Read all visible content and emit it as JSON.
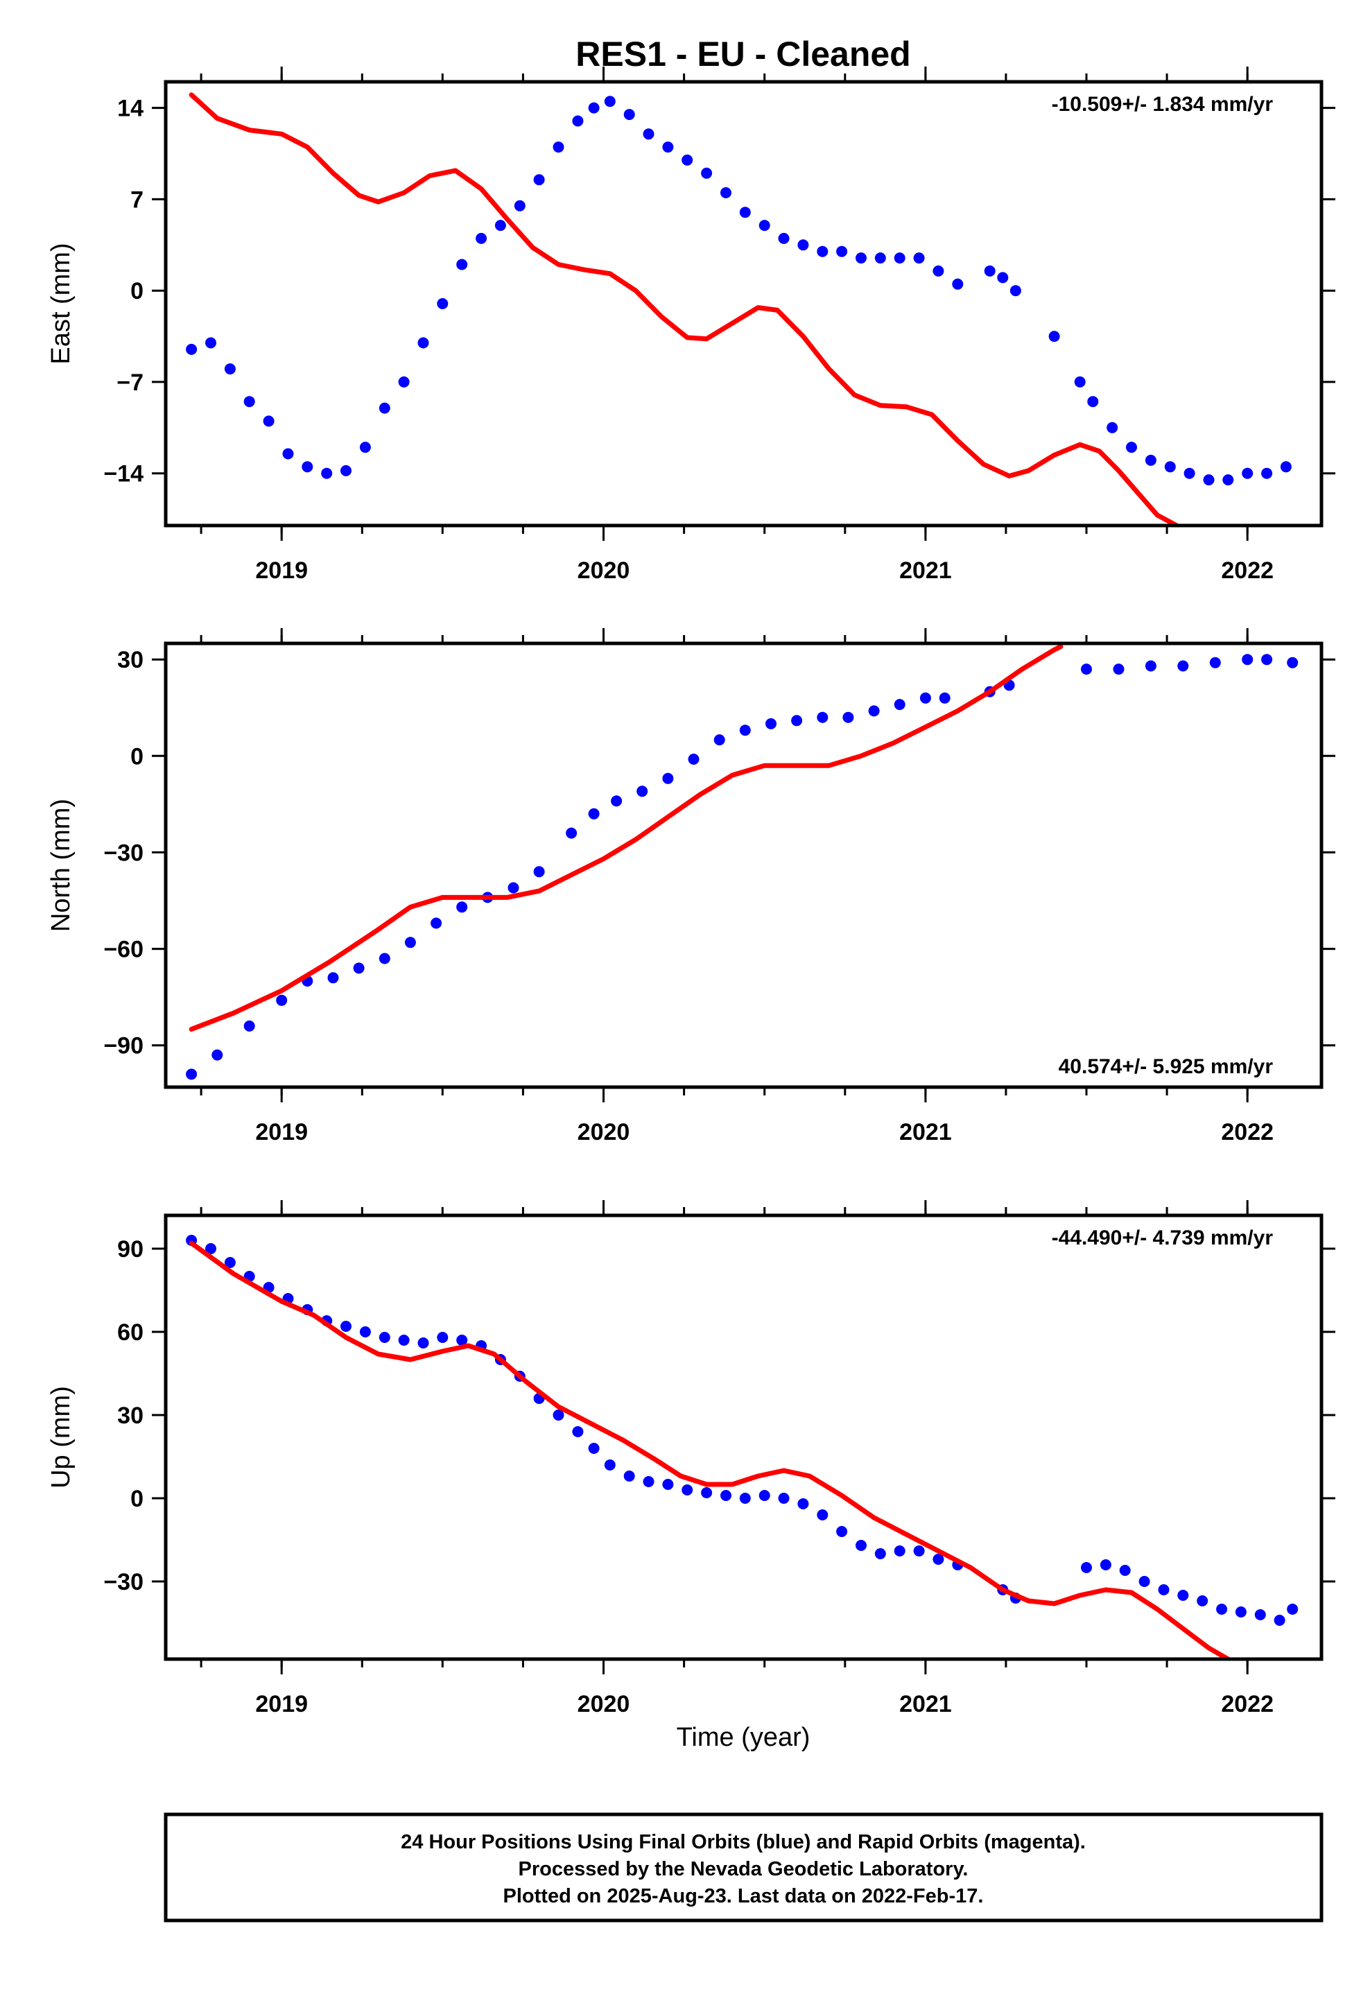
{
  "chart_data": {
    "title": "RES1  - EU - Cleaned",
    "type": "scatter",
    "colors": {
      "observations": "#0000ff",
      "model": "#ff0000",
      "frame": "#000000"
    },
    "xlabel": "Time (year)",
    "xlim": [
      2018.64,
      2022.23
    ],
    "x_ticks": [
      2019,
      2020,
      2021,
      2022
    ],
    "x_tick_labels": [
      "2019",
      "2020",
      "2021",
      "2022"
    ],
    "x_minor_step": 0.25,
    "grid": false,
    "panels": [
      {
        "name": "east",
        "ylabel": "East (mm)",
        "ylim": [
          -18,
          16
        ],
        "y_ticks": [
          -14,
          -7,
          0,
          7,
          14
        ],
        "y_tick_labels": [
          "−14",
          "−7",
          "0",
          "7",
          "14"
        ],
        "rate": "-10.509+/- 1.834 mm/yr",
        "rate_position": "top-right",
        "observations_x": [
          2018.72,
          2018.78,
          2018.84,
          2018.9,
          2018.96,
          2019.02,
          2019.08,
          2019.14,
          2019.2,
          2019.26,
          2019.32,
          2019.38,
          2019.44,
          2019.5,
          2019.56,
          2019.62,
          2019.68,
          2019.74,
          2019.8,
          2019.86,
          2019.92,
          2019.97,
          2020.02,
          2020.08,
          2020.14,
          2020.2,
          2020.26,
          2020.32,
          2020.38,
          2020.44,
          2020.5,
          2020.56,
          2020.62,
          2020.68,
          2020.74,
          2020.8,
          2020.86,
          2020.92,
          2020.98,
          2021.04,
          2021.1,
          2021.2,
          2021.24,
          2021.28,
          2021.4,
          2021.48,
          2021.52,
          2021.58,
          2021.64,
          2021.7,
          2021.76,
          2021.82,
          2021.88,
          2021.94,
          2022.0,
          2022.06,
          2022.12
        ],
        "observations_y": [
          -4.5,
          -4.0,
          -6.0,
          -8.5,
          -10.0,
          -12.5,
          -13.5,
          -14.0,
          -13.8,
          -12.0,
          -9.0,
          -7.0,
          -4.0,
          -1.0,
          2.0,
          4.0,
          5.0,
          6.5,
          8.5,
          11.0,
          13.0,
          14.0,
          14.5,
          13.5,
          12.0,
          11.0,
          10.0,
          9.0,
          7.5,
          6.0,
          5.0,
          4.0,
          3.5,
          3.0,
          3.0,
          2.5,
          2.5,
          2.5,
          2.5,
          1.5,
          0.5,
          1.5,
          1.0,
          0.0,
          -3.5,
          -7.0,
          -8.5,
          -10.5,
          -12.0,
          -13.0,
          -13.5,
          -14.0,
          -14.5,
          -14.5,
          -14.0,
          -14.0,
          -13.5
        ],
        "model_x": [
          2018.72,
          2018.8,
          2018.9,
          2019.0,
          2019.08,
          2019.16,
          2019.24,
          2019.3,
          2019.38,
          2019.46,
          2019.54,
          2019.62,
          2019.7,
          2019.78,
          2019.86,
          2019.94,
          2020.02,
          2020.1,
          2020.18,
          2020.26,
          2020.32,
          2020.4,
          2020.48,
          2020.54,
          2020.62,
          2020.7,
          2020.78,
          2020.86,
          2020.94,
          2021.02,
          2021.1,
          2021.18,
          2021.26,
          2021.32,
          2021.4,
          2021.48,
          2021.54,
          2021.6,
          2021.66,
          2021.72,
          2021.78
        ],
        "model_y": [
          15.0,
          13.2,
          12.3,
          12.0,
          11.0,
          9.0,
          7.3,
          6.8,
          7.5,
          8.8,
          9.2,
          7.8,
          5.5,
          3.3,
          2.0,
          1.6,
          1.3,
          0.0,
          -2.0,
          -3.6,
          -3.7,
          -2.5,
          -1.3,
          -1.5,
          -3.5,
          -6.0,
          -8.0,
          -8.8,
          -8.9,
          -9.5,
          -11.5,
          -13.3,
          -14.2,
          -13.8,
          -12.6,
          -11.8,
          -12.3,
          -13.8,
          -15.5,
          -17.2,
          -18.0
        ]
      },
      {
        "name": "north",
        "ylabel": "North (mm)",
        "ylim": [
          -103,
          35
        ],
        "y_ticks": [
          -90,
          -60,
          -30,
          0,
          30
        ],
        "y_tick_labels": [
          "−90",
          "−60",
          "−30",
          "0",
          "30"
        ],
        "rate": "40.574+/- 5.925 mm/yr",
        "rate_position": "bottom-right",
        "observations_x": [
          2018.72,
          2018.8,
          2018.9,
          2019.0,
          2019.08,
          2019.16,
          2019.24,
          2019.32,
          2019.4,
          2019.48,
          2019.56,
          2019.64,
          2019.72,
          2019.8,
          2019.9,
          2019.97,
          2020.04,
          2020.12,
          2020.2,
          2020.28,
          2020.36,
          2020.44,
          2020.52,
          2020.6,
          2020.68,
          2020.76,
          2020.84,
          2020.92,
          2021.0,
          2021.06,
          2021.2,
          2021.26,
          2021.5,
          2021.6,
          2021.7,
          2021.8,
          2021.9,
          2022.0,
          2022.06,
          2022.14
        ],
        "observations_y": [
          -99,
          -93,
          -84,
          -76,
          -70,
          -69,
          -66,
          -63,
          -58,
          -52,
          -47,
          -44,
          -41,
          -36,
          -24,
          -18,
          -14,
          -11,
          -7,
          -1,
          5,
          8,
          10,
          11,
          12,
          12,
          14,
          16,
          18,
          18,
          20,
          22,
          27,
          27,
          28,
          28,
          29,
          30,
          30,
          29
        ],
        "model_x": [
          2018.72,
          2018.85,
          2019.0,
          2019.15,
          2019.3,
          2019.4,
          2019.5,
          2019.6,
          2019.7,
          2019.8,
          2019.9,
          2020.0,
          2020.1,
          2020.2,
          2020.3,
          2020.4,
          2020.5,
          2020.6,
          2020.7,
          2020.8,
          2020.9,
          2021.0,
          2021.1,
          2021.2,
          2021.3,
          2021.4,
          2021.42
        ],
        "model_y": [
          -85,
          -80,
          -73,
          -64,
          -54,
          -47,
          -44,
          -44,
          -44,
          -42,
          -37,
          -32,
          -26,
          -19,
          -12,
          -6,
          -3,
          -3,
          -3,
          0,
          4,
          9,
          14,
          20,
          27,
          33,
          34
        ]
      },
      {
        "name": "up",
        "ylabel": "Up (mm)",
        "ylim": [
          -58,
          102
        ],
        "y_ticks": [
          -30,
          0,
          30,
          60,
          90
        ],
        "y_tick_labels": [
          "−30",
          "0",
          "30",
          "60",
          "90"
        ],
        "rate": "-44.490+/- 4.739 mm/yr",
        "rate_position": "top-right",
        "observations_x": [
          2018.72,
          2018.78,
          2018.84,
          2018.9,
          2018.96,
          2019.02,
          2019.08,
          2019.14,
          2019.2,
          2019.26,
          2019.32,
          2019.38,
          2019.44,
          2019.5,
          2019.56,
          2019.62,
          2019.68,
          2019.74,
          2019.8,
          2019.86,
          2019.92,
          2019.97,
          2020.02,
          2020.08,
          2020.14,
          2020.2,
          2020.26,
          2020.32,
          2020.38,
          2020.44,
          2020.5,
          2020.56,
          2020.62,
          2020.68,
          2020.74,
          2020.8,
          2020.86,
          2020.92,
          2020.98,
          2021.04,
          2021.1,
          2021.24,
          2021.28,
          2021.5,
          2021.56,
          2021.62,
          2021.68,
          2021.74,
          2021.8,
          2021.86,
          2021.92,
          2021.98,
          2022.04,
          2022.1,
          2022.14
        ],
        "observations_y": [
          93,
          90,
          85,
          80,
          76,
          72,
          68,
          64,
          62,
          60,
          58,
          57,
          56,
          58,
          57,
          55,
          50,
          44,
          36,
          30,
          24,
          18,
          12,
          8,
          6,
          5,
          3,
          2,
          1,
          0,
          1,
          0,
          -2,
          -6,
          -12,
          -17,
          -20,
          -19,
          -19,
          -22,
          -24,
          -33,
          -36,
          -25,
          -24,
          -26,
          -30,
          -33,
          -35,
          -37,
          -40,
          -41,
          -42,
          -44,
          -40
        ],
        "model_x": [
          2018.72,
          2018.85,
          2019.0,
          2019.1,
          2019.2,
          2019.3,
          2019.4,
          2019.5,
          2019.58,
          2019.66,
          2019.76,
          2019.86,
          2019.96,
          2020.06,
          2020.16,
          2020.24,
          2020.32,
          2020.4,
          2020.48,
          2020.56,
          2020.64,
          2020.74,
          2020.84,
          2020.94,
          2021.04,
          2021.14,
          2021.24,
          2021.32,
          2021.4,
          2021.48,
          2021.56,
          2021.64,
          2021.72,
          2021.8,
          2021.88,
          2021.94
        ],
        "model_y": [
          92,
          81,
          71,
          66,
          58,
          52,
          50,
          53,
          55,
          52,
          42,
          33,
          27,
          21,
          14,
          8,
          5,
          5,
          8,
          10,
          8,
          1,
          -7,
          -13,
          -19,
          -25,
          -33,
          -37,
          -38,
          -35,
          -33,
          -34,
          -40,
          -47,
          -54,
          -58
        ]
      }
    ],
    "caption": [
      "24 Hour Positions Using Final Orbits (blue) and Rapid Orbits (magenta).",
      "Processed by the Nevada Geodetic Laboratory.",
      "Plotted on 2025-Aug-23. Last data on 2022-Feb-17."
    ]
  }
}
